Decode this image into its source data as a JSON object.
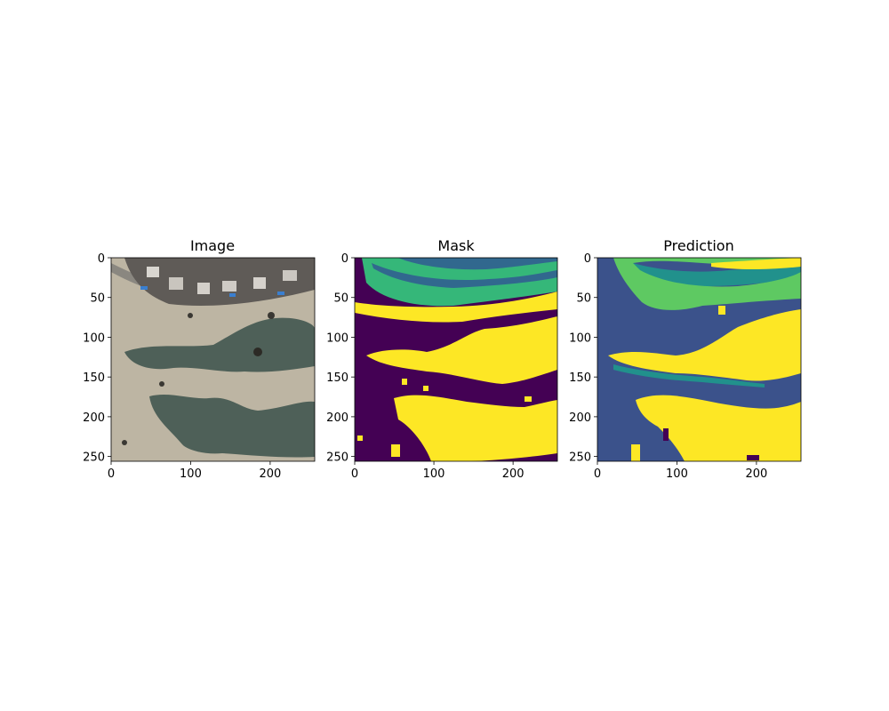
{
  "chart_data": [
    {
      "type": "heatmap",
      "title": "Image",
      "content": "aerial satellite photo",
      "xlim": [
        0,
        256
      ],
      "ylim": [
        256,
        0
      ],
      "xticks": [
        0,
        100,
        200
      ],
      "yticks": [
        0,
        50,
        100,
        150,
        200,
        250
      ],
      "colors": {
        "sand": "#bdb5a3",
        "vegetation": "#4e6058",
        "roofs": "#6b6660",
        "pools": "#3a7fd0"
      }
    },
    {
      "type": "heatmap",
      "title": "Mask",
      "content": "segmentation mask",
      "xlim": [
        0,
        256
      ],
      "ylim": [
        256,
        0
      ],
      "xticks": [
        0,
        100,
        200
      ],
      "yticks": [
        0,
        50,
        100,
        150,
        200,
        250
      ],
      "colors": {
        "background": "#440154",
        "class_1": "#31688e",
        "class_2": "#35b779",
        "class_3": "#fde725"
      }
    },
    {
      "type": "heatmap",
      "title": "Prediction",
      "content": "predicted segmentation",
      "xlim": [
        0,
        256
      ],
      "ylim": [
        256,
        0
      ],
      "xticks": [
        0,
        100,
        200
      ],
      "yticks": [
        0,
        50,
        100,
        150,
        200,
        250
      ],
      "colors": {
        "background": "#3b528b",
        "class_1": "#21918c",
        "class_2": "#5ec962",
        "class_3": "#fde725"
      }
    }
  ]
}
